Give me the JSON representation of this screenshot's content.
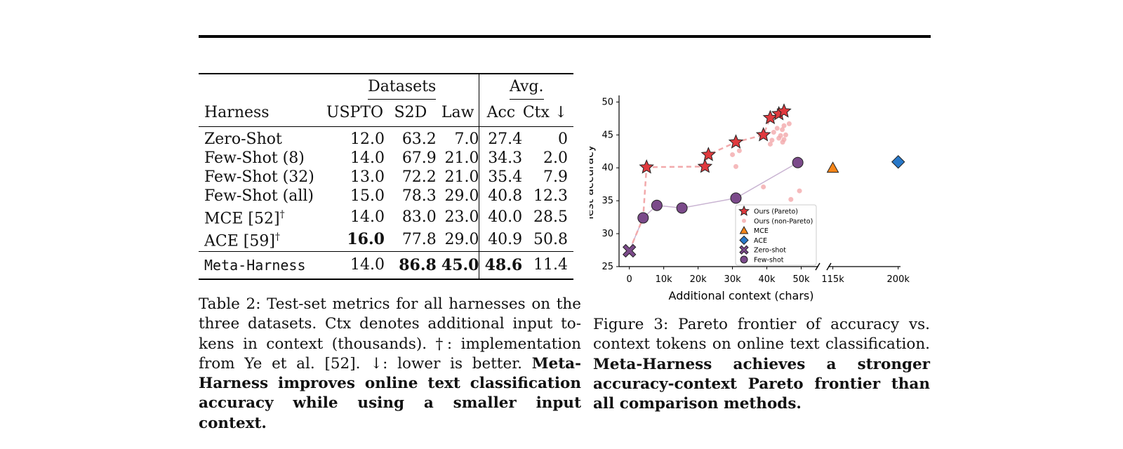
{
  "table": {
    "group_headers": {
      "datasets": "Datasets",
      "avg": "Avg."
    },
    "columns": [
      "Harness",
      "USPTO",
      "S2D",
      "Law",
      "Acc",
      "Ctx ↓"
    ],
    "rows": [
      {
        "harness": "Zero-Shot",
        "sup": "",
        "uspto": "12.0",
        "s2d": "63.2",
        "law": "7.0",
        "acc": "27.4",
        "ctx": "0"
      },
      {
        "harness": "Few-Shot (8)",
        "sup": "",
        "uspto": "14.0",
        "s2d": "67.9",
        "law": "21.0",
        "acc": "34.3",
        "ctx": "2.0"
      },
      {
        "harness": "Few-Shot (32)",
        "sup": "",
        "uspto": "13.0",
        "s2d": "72.2",
        "law": "21.0",
        "acc": "35.4",
        "ctx": "7.9"
      },
      {
        "harness": "Few-Shot (all)",
        "sup": "",
        "uspto": "15.0",
        "s2d": "78.3",
        "law": "29.0",
        "acc": "40.8",
        "ctx": "12.3"
      },
      {
        "harness": "MCE [52]",
        "sup": "†",
        "uspto": "14.0",
        "s2d": "83.0",
        "law": "23.0",
        "acc": "40.0",
        "ctx": "28.5"
      },
      {
        "harness": "ACE [59]",
        "sup": "†",
        "uspto": "16.0",
        "s2d": "77.8",
        "law": "29.0",
        "acc": "40.9",
        "ctx": "50.8"
      }
    ],
    "final_row": {
      "harness": "Meta-Harness",
      "uspto": "14.0",
      "s2d": "86.8",
      "law": "45.0",
      "acc": "48.6",
      "ctx": "11.4"
    }
  },
  "table_caption": {
    "text": "Table 2: Test-set metrics for all harnesses on the three datasets. Ctx denotes additional input to­kens in context (thousands). †: implementation from Ye et al. [52]. ↓: lower is better. ",
    "bold": "Meta-Harness improves online text classification ac­curacy while using a smaller input context."
  },
  "figure_caption": {
    "text": "Figure 3: Pareto frontier of accuracy vs. context tokens on online text classifica­tion. ",
    "bold": "Meta-Harness achieves a stronger accuracy-context Pareto frontier than all comparison methods."
  },
  "chart_data": {
    "type": "scatter",
    "xlabel": "Additional context (chars)",
    "ylabel": "Test accuracy",
    "ylim": [
      25,
      51
    ],
    "yticks": [
      25,
      30,
      35,
      40,
      45,
      50
    ],
    "broken_x_axis": true,
    "left_segment": {
      "xlim": [
        -3,
        55
      ],
      "ticks": [
        0,
        10,
        20,
        30,
        40,
        50
      ],
      "tick_labels": [
        "0",
        "10k",
        "20k",
        "30k",
        "40k",
        "50k"
      ]
    },
    "right_segment": {
      "xlim": [
        109,
        203
      ],
      "ticks": [
        115,
        200
      ],
      "tick_labels": [
        "115k",
        "200k"
      ]
    },
    "x_units": "thousands of chars",
    "legend_position": "lower-center",
    "colors": {
      "ours": "#e03a3e",
      "ours_light": "#f2a9ab",
      "mce": "#f58518",
      "ace": "#2878c8",
      "zero_shot": "#7b4a8a",
      "few_shot": "#7b4a8a"
    },
    "series": [
      {
        "name": "Ours (Pareto)",
        "marker": "star",
        "points": [
          [
            5,
            40.1
          ],
          [
            22,
            40.2
          ],
          [
            23,
            42
          ],
          [
            31,
            43.9
          ],
          [
            39,
            45
          ],
          [
            41,
            47.6
          ],
          [
            43.5,
            48.2
          ],
          [
            45,
            48.6
          ]
        ]
      },
      {
        "name": "Ours (non-Pareto)",
        "marker": "dot",
        "points": [
          [
            30,
            42
          ],
          [
            31,
            40.2
          ],
          [
            32,
            42.6
          ],
          [
            39,
            37.1
          ],
          [
            41,
            43.6
          ],
          [
            41.5,
            44.2
          ],
          [
            42,
            45.4
          ],
          [
            43,
            46
          ],
          [
            43.5,
            44.5
          ],
          [
            44,
            44.9
          ],
          [
            44.5,
            45.8
          ],
          [
            44.6,
            43.9
          ],
          [
            45,
            44.3
          ],
          [
            45,
            46.4
          ],
          [
            45.5,
            45
          ],
          [
            46.5,
            46.7
          ],
          [
            47,
            35.2
          ],
          [
            49.5,
            36.5
          ],
          [
            49,
            41.3
          ]
        ]
      },
      {
        "name": "MCE",
        "marker": "triangle",
        "points": [
          [
            115,
            40.0
          ]
        ]
      },
      {
        "name": "ACE",
        "marker": "diamond",
        "points": [
          [
            200,
            40.9
          ]
        ]
      },
      {
        "name": "Zero-shot",
        "marker": "x",
        "points": [
          [
            0,
            27.4
          ]
        ]
      },
      {
        "name": "Few-shot",
        "marker": "circle",
        "points": [
          [
            4,
            32.4
          ],
          [
            8,
            34.3
          ],
          [
            15.3,
            33.9
          ],
          [
            31,
            35.4
          ],
          [
            49,
            40.8
          ]
        ]
      }
    ],
    "pareto_line": [
      [
        0,
        27.4
      ],
      [
        4,
        32.4
      ],
      [
        5,
        40.1
      ],
      [
        22,
        40.2
      ],
      [
        23,
        42
      ],
      [
        31,
        43.9
      ],
      [
        39,
        45
      ],
      [
        41,
        47.6
      ],
      [
        43.5,
        48.2
      ],
      [
        45,
        48.6
      ]
    ]
  }
}
